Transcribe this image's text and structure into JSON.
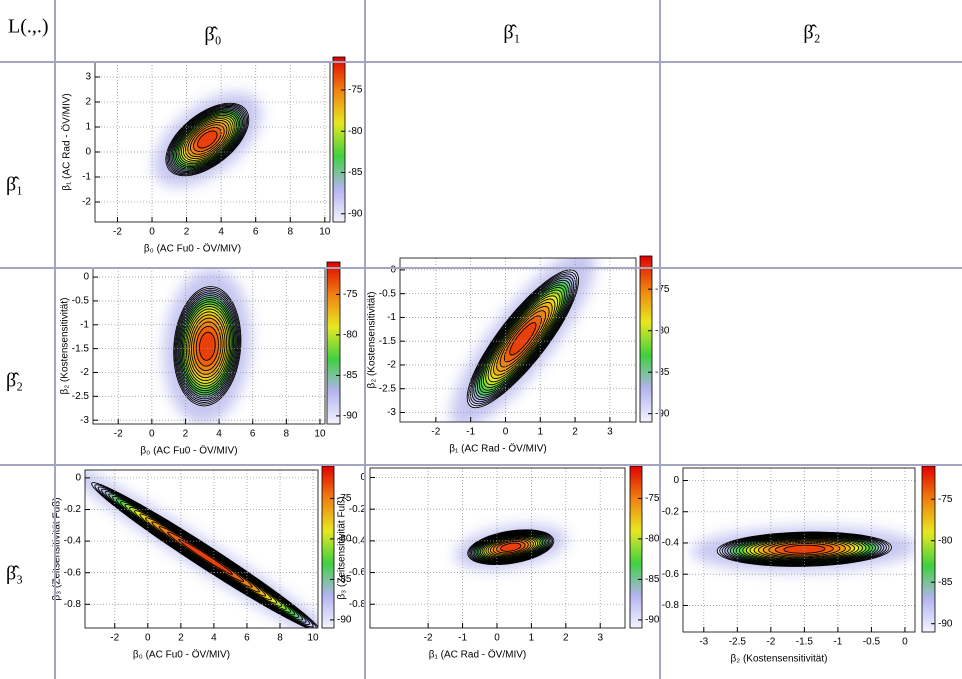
{
  "header": {
    "corner": "L(.,.)",
    "columns": [
      "β̂₀",
      "β̂₁",
      "β̂₂"
    ],
    "rows": [
      "β̂₁",
      "β̂₂",
      "β̂₃"
    ]
  },
  "chart_data": [
    {
      "type": "contour",
      "xlabel": "β₀ (AC Fu0 - ÖV/MIV)",
      "ylabel": "β₁ (AC Rad - ÖV/MIV)",
      "xlim": [
        -3.3,
        10.3
      ],
      "ylim": [
        -2.8,
        3.6
      ],
      "xticks": [
        -2,
        0,
        2,
        4,
        6,
        8,
        10
      ],
      "yticks": [
        -2,
        -1,
        0,
        1,
        2,
        3
      ],
      "zlim": [
        -91,
        -71
      ],
      "zticks": [
        -75,
        -80,
        -85,
        -90
      ],
      "peak": -72,
      "levels": [
        -90,
        -89,
        -88,
        -87,
        -86,
        -85,
        -84,
        -83,
        -82,
        -81,
        -80,
        -79,
        -78,
        -77,
        -76,
        -75,
        -74,
        -73
      ],
      "center": [
        3.2,
        0.5
      ],
      "spread": [
        2.4,
        1.45
      ],
      "rho": 0.55
    },
    {
      "type": "contour",
      "xlabel": "β₀ (AC Fu0 - ÖV/MIV)",
      "ylabel": "β₂ (Kostensensitivität)",
      "xlim": [
        -3.5,
        10.3
      ],
      "ylim": [
        -3.08,
        0.19
      ],
      "xticks": [
        -2,
        0,
        2,
        4,
        6,
        8,
        10
      ],
      "yticks": [
        -3,
        -2.5,
        -2,
        -1.5,
        -1,
        -0.5,
        0
      ],
      "zlim": [
        -91,
        -71
      ],
      "zticks": [
        -75,
        -80,
        -85,
        -90
      ],
      "peak": -72,
      "levels": [
        -90,
        -89,
        -88,
        -87,
        -86,
        -85,
        -84,
        -83,
        -82,
        -81,
        -80,
        -79,
        -78,
        -77,
        -76,
        -75,
        -74,
        -73
      ],
      "center": [
        3.3,
        -1.45
      ],
      "spread": [
        2.0,
        1.25
      ],
      "rho": 0.1
    },
    {
      "type": "contour",
      "xlabel": "β₁ (AC Rad - ÖV/MIV)",
      "ylabel": "β₂ (Kostensensitivität)",
      "xlim": [
        -3.03,
        3.75
      ],
      "ylim": [
        -3.2,
        0.25
      ],
      "xticks": [
        -2,
        -1,
        0,
        1,
        2,
        3
      ],
      "yticks": [
        -3,
        -2.5,
        -2,
        -1.5,
        -1,
        -0.5,
        0
      ],
      "zlim": [
        -91,
        -71
      ],
      "zticks": [
        -75,
        -80,
        -85,
        -90
      ],
      "peak": -72,
      "levels": [
        -90,
        -89,
        -88,
        -87,
        -86,
        -85,
        -84,
        -83,
        -82,
        -81,
        -80,
        -79,
        -78,
        -77,
        -76,
        -75,
        -74,
        -73
      ],
      "center": [
        0.5,
        -1.45
      ],
      "spread": [
        1.6,
        1.45
      ],
      "rho": 0.85
    },
    {
      "type": "contour",
      "xlabel": "β₀ (AC Fu0 - ÖV/MIV)",
      "ylabel": "β₃ (Zeitsensitivität Fuß)",
      "xlim": [
        -3.8,
        10.3
      ],
      "ylim": [
        -0.95,
        0.05
      ],
      "xticks": [
        -2,
        0,
        2,
        4,
        6,
        8,
        10
      ],
      "yticks": [
        -0.8,
        -0.6,
        -0.4,
        -0.2,
        0
      ],
      "zlim": [
        -91,
        -71
      ],
      "zticks": [
        -75,
        -80,
        -85,
        -90
      ],
      "peak": -72,
      "levels": [
        -90,
        -89,
        -88,
        -87,
        -86,
        -85,
        -84,
        -83,
        -82,
        -81,
        -80,
        -79,
        -78,
        -77,
        -76,
        -75,
        -74,
        -73
      ],
      "center": [
        3.5,
        -0.5
      ],
      "spread": [
        6.9,
        0.47
      ],
      "rho": -0.985
    },
    {
      "type": "contour",
      "xlabel": "β₁ (AC Rad - ÖV/MIV)",
      "ylabel": "β₃ (Zeitsensitivität Fuß)",
      "xlim": [
        -3.69,
        3.72
      ],
      "ylim": [
        -0.95,
        0.06
      ],
      "xticks": [
        -2,
        -1,
        0,
        1,
        2,
        3
      ],
      "yticks": [
        -0.8,
        -0.6,
        -0.4,
        -0.2,
        0
      ],
      "zlim": [
        -91,
        -71
      ],
      "zticks": [
        -75,
        -80,
        -85,
        -90
      ],
      "peak": -72,
      "levels": [
        -90,
        -89,
        -88,
        -87,
        -86,
        -85,
        -84,
        -83,
        -82,
        -81,
        -80,
        -79,
        -78,
        -77,
        -76,
        -75,
        -74,
        -73
      ],
      "center": [
        0.4,
        -0.44
      ],
      "spread": [
        1.25,
        0.11
      ],
      "rho": 0.35
    },
    {
      "type": "contour",
      "xlabel": "β₂ (Kostensensitivität)",
      "ylabel": "",
      "xlim": [
        -3.31,
        0.15
      ],
      "ylim": [
        -0.97,
        0.08
      ],
      "xticks": [
        -3,
        -2.5,
        -2,
        -1.5,
        -1,
        -0.5,
        0
      ],
      "yticks": [
        -0.8,
        -0.6,
        -0.4,
        -0.2,
        0
      ],
      "zlim": [
        -91,
        -71
      ],
      "zticks": [
        -75,
        -80,
        -85,
        -90
      ],
      "peak": -72,
      "levels": [
        -90,
        -89,
        -88,
        -87,
        -86,
        -85,
        -84,
        -83,
        -82,
        -81,
        -80,
        -79,
        -78,
        -77,
        -76,
        -75,
        -74,
        -73
      ],
      "center": [
        -1.5,
        -0.44
      ],
      "spread": [
        1.3,
        0.11
      ],
      "rho": 0.1
    }
  ],
  "colormap": [
    "#f4f4ff",
    "#b4b4f0",
    "#40d040",
    "#e8e820",
    "#f08010",
    "#e00000"
  ]
}
